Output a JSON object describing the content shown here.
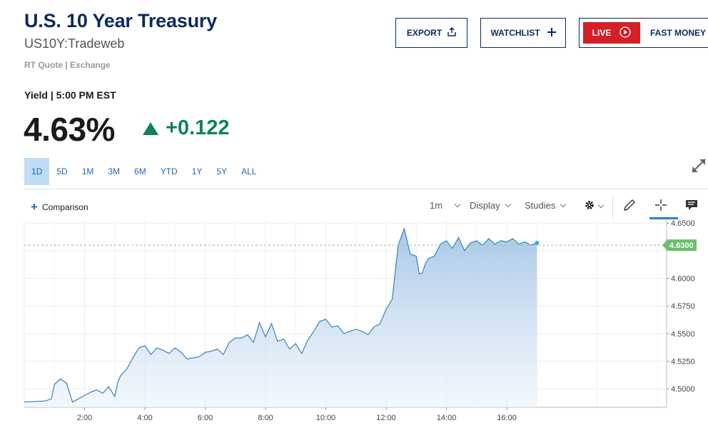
{
  "header": {
    "title": "U.S. 10 Year Treasury",
    "subtitle": "US10Y:Tradeweb",
    "rt_quote": "RT Quote | Exchange"
  },
  "actions": {
    "export_label": "EXPORT",
    "watchlist_label": "WATCHLIST",
    "live_label": "LIVE",
    "fast_money_label": "FAST MONEY",
    "live_color": "#d32027"
  },
  "quote": {
    "yield_label": "Yield | 5:00 PM EST",
    "price": "4.63%",
    "change": "+0.122",
    "change_color": "#098558",
    "direction": "up"
  },
  "ranges": {
    "items": [
      "1D",
      "5D",
      "1M",
      "3M",
      "6M",
      "YTD",
      "1Y",
      "5Y",
      "ALL"
    ],
    "active": "1D"
  },
  "toolbar": {
    "comparison_label": "Comparison",
    "interval_label": "1m",
    "display_label": "Display",
    "studies_label": "Studies",
    "icons": [
      "gear-icon",
      "pencil-icon",
      "crosshair-icon",
      "comment-icon"
    ]
  },
  "chart_data": {
    "type": "area",
    "x_ticks": [
      "2:00",
      "4:00",
      "6:00",
      "8:00",
      "10:00",
      "12:00",
      "14:00",
      "16:00"
    ],
    "y_ticks": [
      "4.6500",
      "4.6000",
      "4.5750",
      "4.5500",
      "4.5250",
      "4.5000"
    ],
    "ylim": [
      4.4833,
      4.6527
    ],
    "xlim_hours": [
      0.0,
      21.3
    ],
    "current_value_label": "4.6300",
    "current_value": 4.63,
    "line_color": "#3a82c4",
    "grid": true,
    "series": [
      {
        "x_hours": [
          0.0,
          0.7,
          0.9,
          1.0,
          1.2,
          1.4,
          1.6,
          2.0,
          2.2,
          2.4,
          2.6,
          2.8,
          3.0,
          3.1,
          3.2,
          3.4,
          3.6,
          3.8,
          4.0,
          4.2,
          4.4,
          4.6,
          4.8,
          5.0,
          5.2,
          5.4,
          5.6,
          5.8,
          6.0,
          6.2,
          6.4,
          6.6,
          6.8,
          7.0,
          7.2,
          7.4,
          7.6,
          7.8,
          8.0,
          8.2,
          8.4,
          8.6,
          8.8,
          9.0,
          9.2,
          9.4,
          9.6,
          9.8,
          10.0,
          10.2,
          10.4,
          10.6,
          10.8,
          11.0,
          11.2,
          11.4,
          11.6,
          11.8,
          12.0,
          12.2,
          12.4,
          12.6,
          12.8,
          13.0,
          13.05,
          13.1,
          13.2,
          13.3,
          13.4,
          13.6,
          13.8,
          14.0,
          14.2,
          14.4,
          14.6,
          14.8,
          15.0,
          15.2,
          15.4,
          15.6,
          15.8,
          16.0,
          16.2,
          16.4,
          16.6,
          16.8,
          17.0
        ],
        "y": [
          4.488,
          4.489,
          4.491,
          4.504,
          4.509,
          4.505,
          4.488,
          4.494,
          4.497,
          4.499,
          4.496,
          4.502,
          4.493,
          4.506,
          4.512,
          4.518,
          4.528,
          4.537,
          4.539,
          4.531,
          4.537,
          4.535,
          4.532,
          4.537,
          4.533,
          4.527,
          4.528,
          4.529,
          4.533,
          4.534,
          4.536,
          4.531,
          4.542,
          4.546,
          4.546,
          4.549,
          4.542,
          4.56,
          4.547,
          4.559,
          4.543,
          4.545,
          4.536,
          4.541,
          4.532,
          4.544,
          4.552,
          4.561,
          4.563,
          4.556,
          4.557,
          4.55,
          4.552,
          4.554,
          4.552,
          4.549,
          4.556,
          4.559,
          4.572,
          4.581,
          4.63,
          4.645,
          4.622,
          4.62,
          4.612,
          4.604,
          4.605,
          4.613,
          4.618,
          4.62,
          4.631,
          4.634,
          4.627,
          4.637,
          4.625,
          4.632,
          4.634,
          4.63,
          4.636,
          4.631,
          4.634,
          4.633,
          4.636,
          4.631,
          4.633,
          4.63,
          4.632
        ]
      }
    ]
  }
}
